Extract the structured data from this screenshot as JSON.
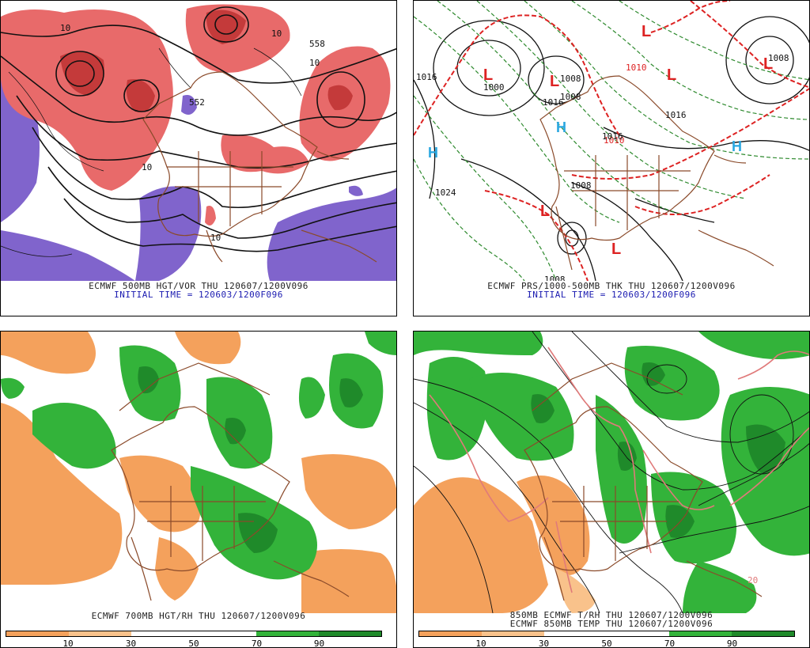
{
  "panels": {
    "top_left": {
      "caption": "ECMWF 500MB HGT/VOR THU 120607/1200V096",
      "initial": "INITIAL TIME = 120603/1200F096",
      "labels": [
        "10",
        "558",
        "10",
        "10",
        "552",
        "10",
        "10"
      ]
    },
    "top_right": {
      "caption": "ECMWF PRS/1000-500MB THK THU 120607/1200V096",
      "initial": "INITIAL TIME = 120603/1200F096",
      "labels": [
        "1016",
        "1008",
        "1024",
        "1008",
        "1016",
        "1016",
        "1008",
        "1008",
        "1000",
        "1008",
        "1010",
        "1010",
        "1016"
      ],
      "highs": [
        "H",
        "H",
        "H"
      ],
      "lows": [
        "L",
        "L",
        "L",
        "L",
        "L",
        "L",
        "L"
      ]
    },
    "bottom_left": {
      "caption": "ECMWF 700MB HGT/RH THU 120607/1200V096",
      "colorbar_ticks": [
        "10",
        "30",
        "50",
        "70",
        "90"
      ]
    },
    "bottom_right": {
      "caption": "850MB ECMWF T/RH THU 120607/1200V096",
      "caption2": "ECMWF 850MB TEMP THU 120607/1200V096",
      "colorbar_ticks": [
        "10",
        "30",
        "50",
        "70",
        "90"
      ],
      "labels": [
        "20"
      ]
    }
  },
  "colors": {
    "vort_pos": "#e86a6a",
    "vort_pos_dark": "#c43a3a",
    "vort_neg": "#8064cc",
    "rh_dry": "#f4a15c",
    "rh_wet": "#33b33a",
    "rh_wetter": "#1f8a2a",
    "map": "#8a4a2a",
    "contour": "#111111",
    "thk_red": "#dd2222",
    "thk_green": "#2e8a2e",
    "high_blue": "#2aa7e0",
    "temp_pink": "#e07a7a"
  }
}
